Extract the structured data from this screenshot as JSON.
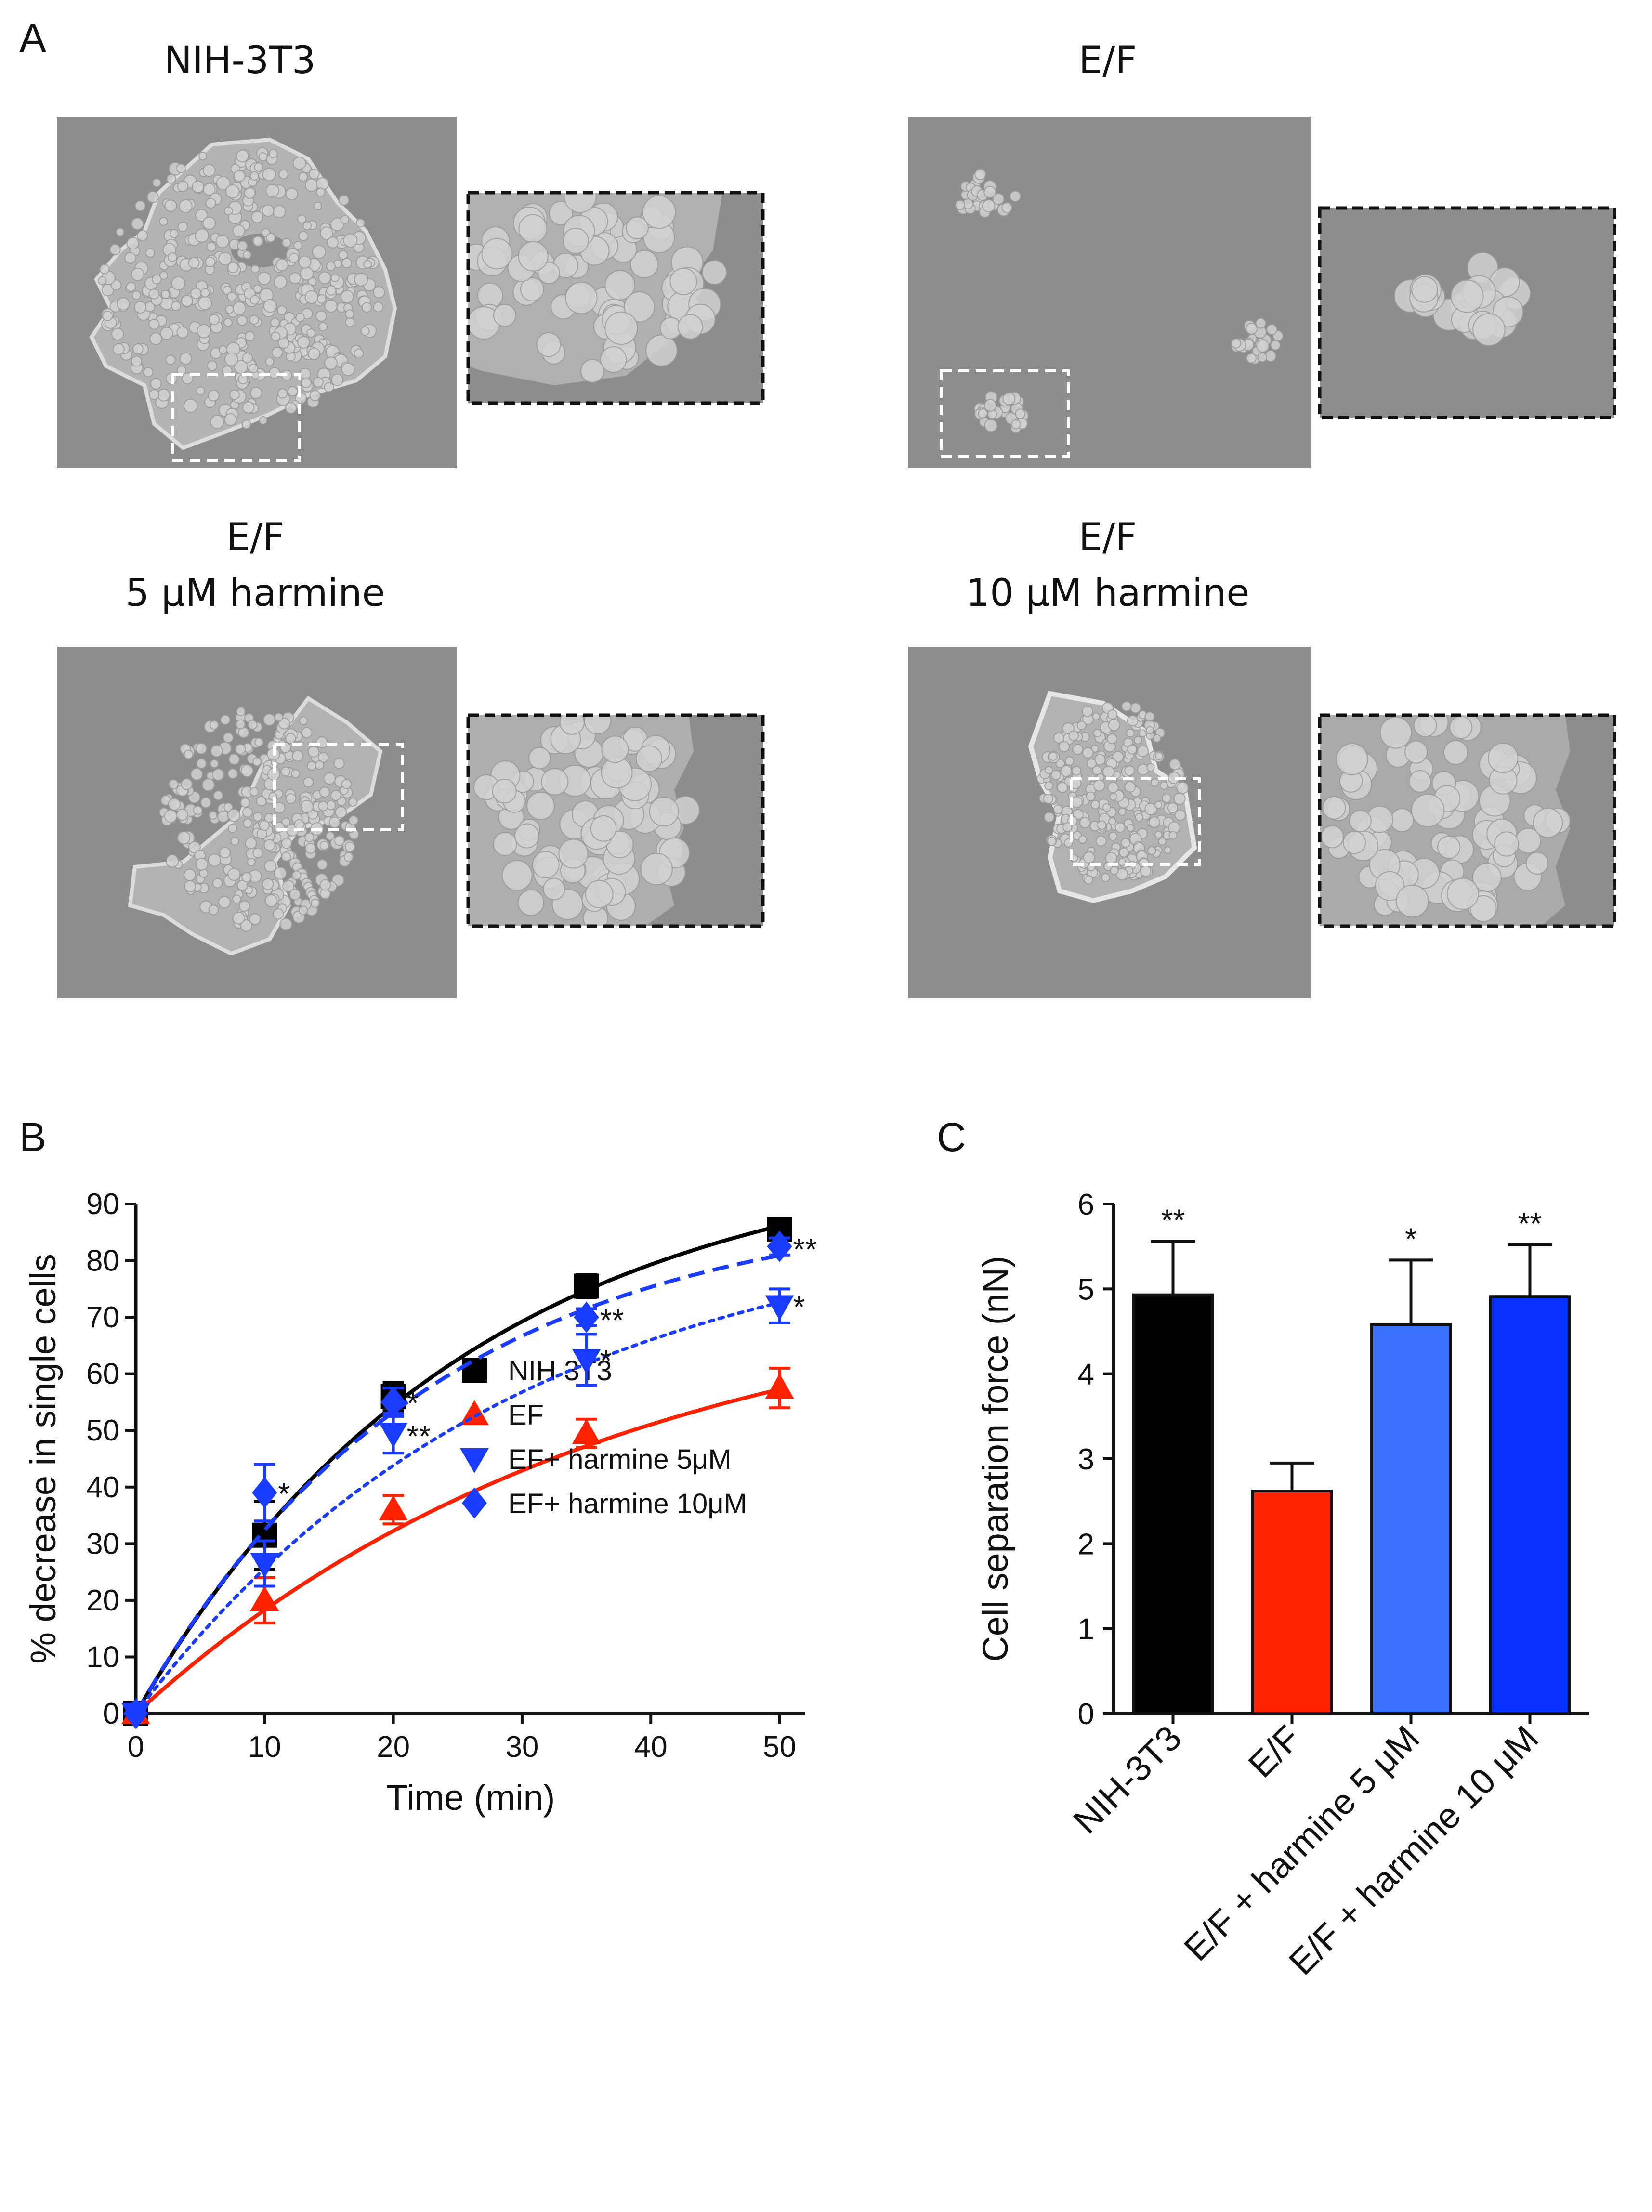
{
  "panel_a": {
    "letter": "A",
    "captions": [
      {
        "lines": [
          "NIH-3T3"
        ]
      },
      {
        "lines": [
          "E/F"
        ]
      },
      {
        "lines": [
          "E/F",
          "5 μM harmine"
        ]
      },
      {
        "lines": [
          "E/F",
          "10 μM harmine"
        ]
      }
    ],
    "micrograph_bg": "#8d8d8d",
    "cell_color": "#d2d2d2"
  },
  "panel_b": {
    "letter": "B",
    "asterisk_single": "*",
    "asterisk_double": "**"
  },
  "panel_c": {
    "letter": "C",
    "asterisk_single": "*",
    "asterisk_double": "**"
  },
  "chart_data": [
    {
      "id": "B",
      "type": "line",
      "xlabel": "Time (min)",
      "ylabel": "% decrease in single cells",
      "xlim": [
        0,
        52
      ],
      "ylim": [
        0,
        90
      ],
      "xticks": [
        0,
        10,
        20,
        30,
        40,
        50
      ],
      "yticks": [
        0,
        10,
        20,
        30,
        40,
        50,
        60,
        70,
        80,
        90
      ],
      "legend_position": "lower-right",
      "x": [
        0,
        10,
        20,
        35,
        50
      ],
      "series": [
        {
          "name": "NIH 3T3",
          "marker": "square",
          "line": "solid",
          "color": "#000000",
          "values": [
            0,
            31.5,
            56,
            75.5,
            85.5
          ],
          "errors": [
            0,
            6,
            2.5,
            2,
            1
          ],
          "fit_k": 0.039,
          "fit_plateau": 100.4,
          "annotations": [
            "",
            "",
            "",
            "",
            ""
          ]
        },
        {
          "name": "EF",
          "marker": "triangle-up",
          "line": "solid",
          "color": "#ff2200",
          "values": [
            0,
            20,
            36,
            49.5,
            57.5
          ],
          "errors": [
            0,
            4,
            2.5,
            2.5,
            3.5
          ],
          "fit_k": 0.027,
          "fit_plateau": 77.3,
          "annotations": [
            "",
            "",
            "",
            "",
            ""
          ]
        },
        {
          "name": "EF+ harmine 5μM",
          "marker": "triangle-down",
          "line": "dotted",
          "color": "#1a3cff",
          "values": [
            0,
            26.5,
            49.5,
            62.5,
            72
          ],
          "errors": [
            0,
            4,
            3.5,
            4.5,
            3
          ],
          "fit_k": 0.034,
          "fit_plateau": 88.8,
          "annotations": [
            "",
            "",
            "**",
            "*",
            "*"
          ]
        },
        {
          "name": "EF+ harmine 10μM",
          "marker": "diamond",
          "line": "dashed",
          "color": "#1a3cff",
          "values": [
            0,
            39,
            55,
            70,
            82.5
          ],
          "errors": [
            0,
            5,
            2.5,
            1.5,
            1.5
          ],
          "fit_k": 0.044,
          "fit_plateau": 91,
          "annotations": [
            "",
            "*",
            "*",
            "**",
            "**"
          ]
        }
      ]
    },
    {
      "id": "C",
      "type": "bar",
      "ylabel": "Cell separation force (nN)",
      "ylim": [
        0,
        6
      ],
      "yticks": [
        0,
        1,
        2,
        3,
        4,
        5,
        6
      ],
      "categories": [
        "NIH-3T3",
        "E/F",
        "E/F + harmine 5 μM",
        "E/F + harmine 10 μM"
      ],
      "values": [
        4.93,
        2.62,
        4.58,
        4.91
      ],
      "errors": [
        0.63,
        0.33,
        0.76,
        0.61
      ],
      "colors": [
        "#000000",
        "#ff2200",
        "#3a72ff",
        "#0a32ff"
      ],
      "annotations": [
        "**",
        "",
        "*",
        "**"
      ]
    }
  ]
}
